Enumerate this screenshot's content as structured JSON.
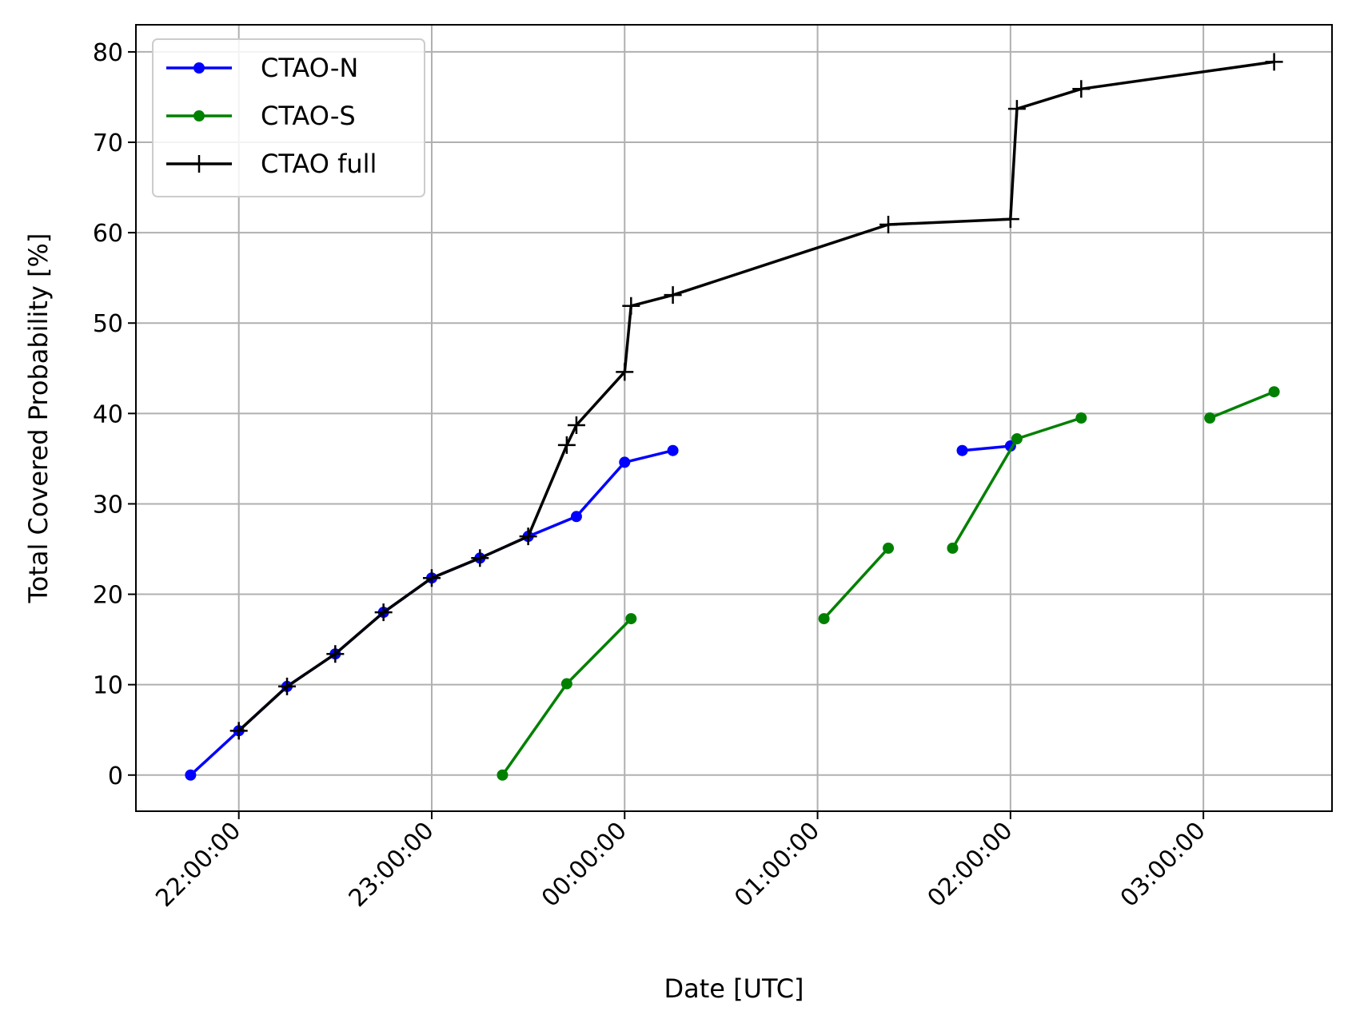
{
  "chart_data": {
    "type": "line",
    "title": "",
    "xlabel": "Date [UTC]",
    "ylabel": "Total Covered Probability [%]",
    "x_unit": "time (UTC)",
    "xlim": [
      "21:28:00",
      "03:40:00"
    ],
    "ylim": [
      -4,
      83
    ],
    "x_ticks": [
      "22:00:00",
      "23:00:00",
      "00:00:00",
      "01:00:00",
      "02:00:00",
      "03:00:00"
    ],
    "y_ticks": [
      0,
      10,
      20,
      30,
      40,
      50,
      60,
      70,
      80
    ],
    "grid": true,
    "legend_position": "top-left",
    "series": [
      {
        "name": "CTAO-N",
        "color": "#0000ff",
        "marker": "circle",
        "segments": [
          [
            {
              "x": "21:45:00",
              "y": 0.0
            },
            {
              "x": "22:00:00",
              "y": 4.9
            },
            {
              "x": "22:15:00",
              "y": 9.8
            },
            {
              "x": "22:30:00",
              "y": 13.4
            },
            {
              "x": "22:45:00",
              "y": 18.0
            },
            {
              "x": "23:00:00",
              "y": 21.8
            },
            {
              "x": "23:15:00",
              "y": 24.0
            },
            {
              "x": "23:30:00",
              "y": 26.4
            },
            {
              "x": "23:45:00",
              "y": 28.6
            },
            {
              "x": "00:00:00",
              "y": 34.6
            },
            {
              "x": "00:15:00",
              "y": 35.9
            }
          ],
          [
            {
              "x": "01:45:00",
              "y": 35.9
            },
            {
              "x": "02:00:00",
              "y": 36.4
            }
          ]
        ]
      },
      {
        "name": "CTAO-S",
        "color": "#008000",
        "marker": "circle",
        "segments": [
          [
            {
              "x": "23:22:00",
              "y": 0.0
            },
            {
              "x": "23:42:00",
              "y": 10.1
            },
            {
              "x": "00:02:00",
              "y": 17.3
            }
          ],
          [
            {
              "x": "01:02:00",
              "y": 17.3
            },
            {
              "x": "01:22:00",
              "y": 25.1
            }
          ],
          [
            {
              "x": "01:42:00",
              "y": 25.1
            },
            {
              "x": "02:02:00",
              "y": 37.2
            },
            {
              "x": "02:22:00",
              "y": 39.5
            }
          ],
          [
            {
              "x": "03:02:00",
              "y": 39.5
            },
            {
              "x": "03:22:00",
              "y": 42.4
            }
          ]
        ]
      },
      {
        "name": "CTAO full",
        "color": "#000000",
        "marker": "plus",
        "segments": [
          [
            {
              "x": "22:00:00",
              "y": 4.9
            },
            {
              "x": "22:15:00",
              "y": 9.8
            },
            {
              "x": "22:30:00",
              "y": 13.4
            },
            {
              "x": "22:45:00",
              "y": 18.0
            },
            {
              "x": "23:00:00",
              "y": 21.8
            },
            {
              "x": "23:15:00",
              "y": 24.0
            },
            {
              "x": "23:30:00",
              "y": 26.4
            },
            {
              "x": "23:42:00",
              "y": 36.5
            },
            {
              "x": "23:45:00",
              "y": 38.7
            },
            {
              "x": "00:00:00",
              "y": 44.6
            },
            {
              "x": "00:02:00",
              "y": 51.9
            },
            {
              "x": "00:15:00",
              "y": 53.1
            },
            {
              "x": "01:22:00",
              "y": 60.9
            },
            {
              "x": "02:00:00",
              "y": 61.5
            },
            {
              "x": "02:02:00",
              "y": 73.7
            },
            {
              "x": "02:22:00",
              "y": 75.9
            },
            {
              "x": "03:22:00",
              "y": 78.9
            }
          ]
        ]
      }
    ]
  }
}
